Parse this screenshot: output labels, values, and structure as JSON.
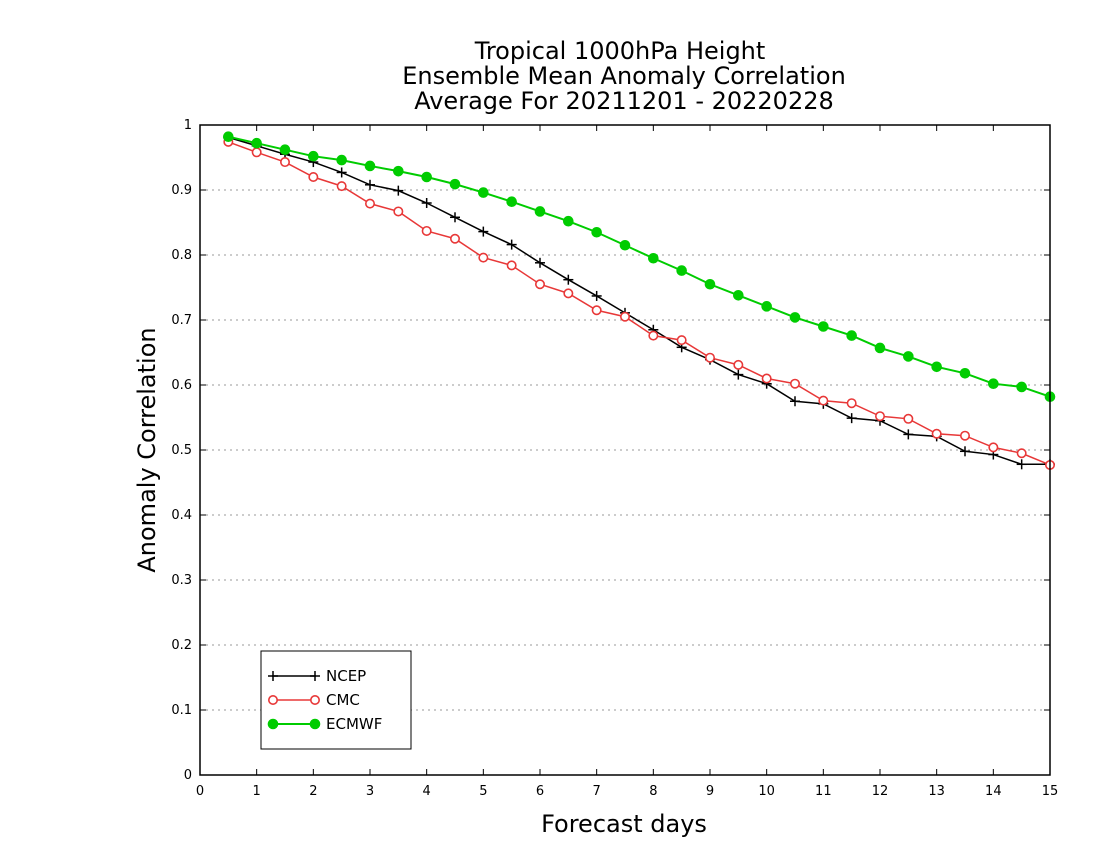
{
  "chart_data": {
    "type": "line",
    "title_lines": [
      "Tropical 1000hPa Height",
      "Ensemble Mean Anomaly Correlation",
      "Average For 20211201 - 20220228"
    ],
    "xlabel": "Forecast days",
    "ylabel": "Anomaly Correlation",
    "xlim": [
      0,
      15
    ],
    "ylim": [
      0,
      1
    ],
    "xticks": [
      "0",
      "1",
      "2",
      "3",
      "4",
      "5",
      "6",
      "7",
      "8",
      "9",
      "10",
      "11",
      "12",
      "13",
      "14",
      "15"
    ],
    "yticks": [
      "0",
      "0.1",
      "0.2",
      "0.3",
      "0.4",
      "0.5",
      "0.6",
      "0.7",
      "0.8",
      "0.9",
      "1"
    ],
    "grid": true,
    "legend_position": "bottom-left",
    "x": [
      0.5,
      1,
      1.5,
      2,
      2.5,
      3,
      3.5,
      4,
      4.5,
      5,
      5.5,
      6,
      6.5,
      7,
      7.5,
      8,
      8.5,
      9,
      9.5,
      10,
      10.5,
      11,
      11.5,
      12,
      12.5,
      13,
      13.5,
      14,
      14.5,
      15
    ],
    "series": [
      {
        "name": "NCEP",
        "color": "#000000",
        "marker": "plus",
        "values": [
          0.981,
          0.968,
          0.955,
          0.943,
          0.927,
          0.908,
          0.899,
          0.88,
          0.858,
          0.836,
          0.816,
          0.788,
          0.762,
          0.737,
          0.711,
          0.685,
          0.658,
          0.639,
          0.616,
          0.602,
          0.575,
          0.571,
          0.549,
          0.545,
          0.524,
          0.521,
          0.498,
          0.493,
          0.478,
          0.478
        ]
      },
      {
        "name": "CMC",
        "color": "#e83838",
        "marker": "open-circle",
        "values": [
          0.974,
          0.958,
          0.943,
          0.92,
          0.906,
          0.879,
          0.867,
          0.837,
          0.825,
          0.796,
          0.784,
          0.755,
          0.741,
          0.715,
          0.705,
          0.676,
          0.669,
          0.642,
          0.631,
          0.61,
          0.602,
          0.576,
          0.572,
          0.552,
          0.548,
          0.525,
          0.522,
          0.504,
          0.495,
          0.477
        ]
      },
      {
        "name": "ECMWF",
        "color": "#00cc00",
        "marker": "filled-circle",
        "values": [
          0.982,
          0.972,
          0.962,
          0.952,
          0.946,
          0.937,
          0.929,
          0.92,
          0.909,
          0.896,
          0.882,
          0.867,
          0.852,
          0.835,
          0.815,
          0.795,
          0.776,
          0.755,
          0.738,
          0.721,
          0.704,
          0.69,
          0.676,
          0.657,
          0.644,
          0.628,
          0.618,
          0.602,
          0.597,
          0.582
        ]
      }
    ]
  }
}
